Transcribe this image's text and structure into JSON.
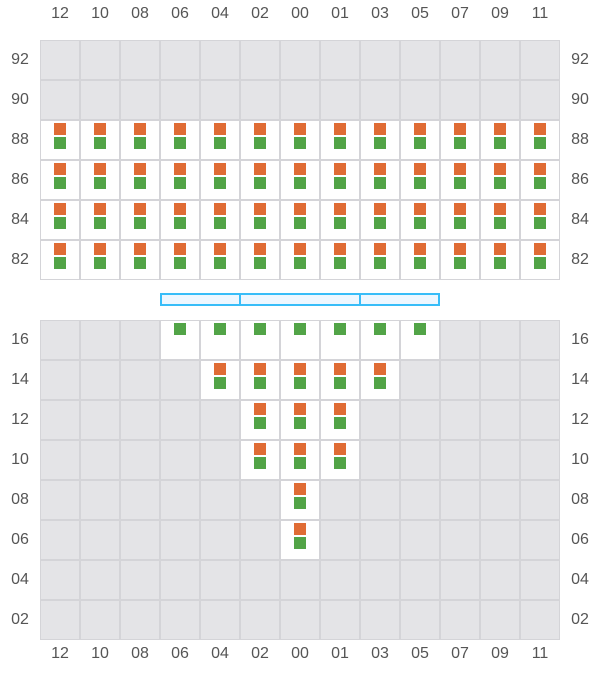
{
  "columns": [
    "12",
    "10",
    "08",
    "06",
    "04",
    "02",
    "00",
    "01",
    "03",
    "05",
    "07",
    "09",
    "11"
  ],
  "colors": {
    "orange": "#e06c35",
    "green": "#52a447",
    "empty": "#e4e4e7",
    "open": "#ffffff",
    "bar": "#38bdf8"
  },
  "top_block": {
    "rows": [
      {
        "label": "92",
        "cells": "-------------"
      },
      {
        "label": "90",
        "cells": "-------------"
      },
      {
        "label": "88",
        "cells": "BBBBBBBBBBBBB"
      },
      {
        "label": "86",
        "cells": "BBBBBBBBBBBBB"
      },
      {
        "label": "84",
        "cells": "BBBBBBBBBBBBB"
      },
      {
        "label": "82",
        "cells": "BBBBBBBBBBBBB"
      }
    ]
  },
  "bottom_block": {
    "rows": [
      {
        "label": "16",
        "cells": "---GGGGGGG---"
      },
      {
        "label": "14",
        "cells": "----BBBBB----"
      },
      {
        "label": "12",
        "cells": "-----BBB-----"
      },
      {
        "label": "10",
        "cells": "-----BBB-----"
      },
      {
        "label": "08",
        "cells": "------B------"
      },
      {
        "label": "06",
        "cells": "------B------"
      },
      {
        "label": "04",
        "cells": "-------------"
      },
      {
        "label": "02",
        "cells": "-------------"
      }
    ]
  },
  "legend": "B = orange+green markers, G = green marker only, - = empty"
}
